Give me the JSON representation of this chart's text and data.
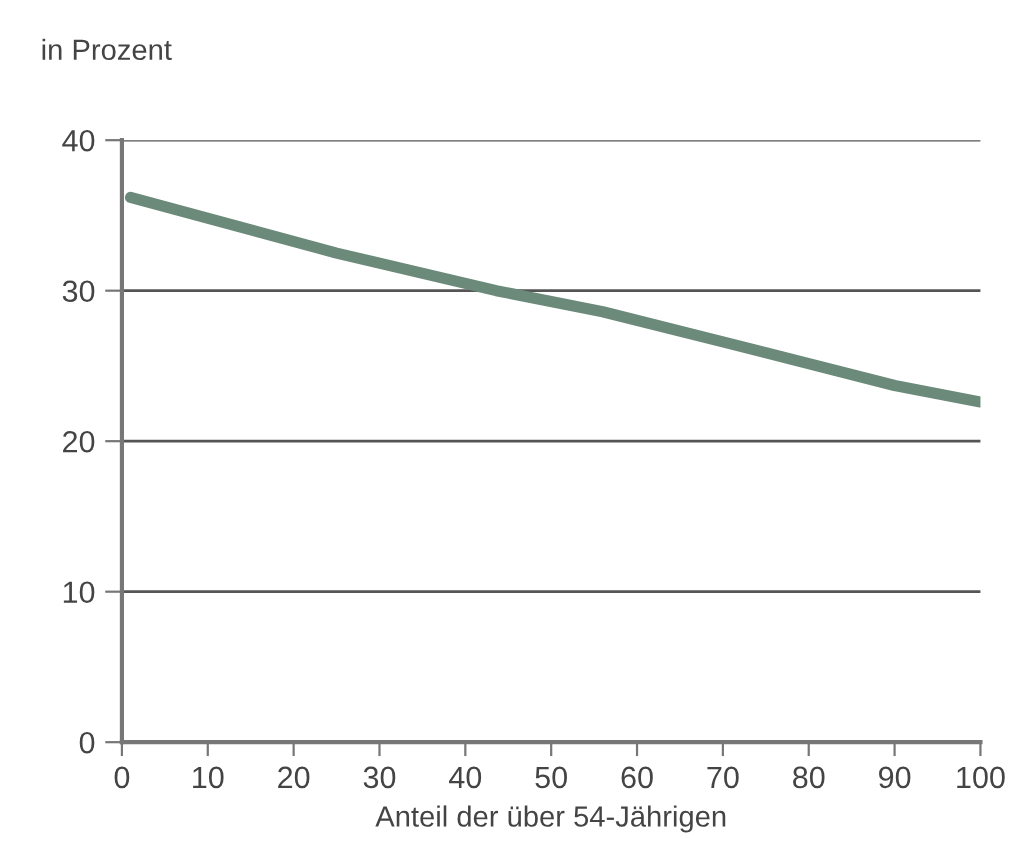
{
  "chart_data": {
    "type": "line",
    "ylabel": "in Prozent",
    "xlabel": "Anteil der über 54-Jährigen",
    "x": [
      1,
      25,
      43.6,
      56,
      70,
      90,
      100
    ],
    "series": [
      {
        "color": "#6b8a7a",
        "values": [
          36.2,
          32.5,
          30,
          28.6,
          26.6,
          23.7,
          22.6
        ]
      }
    ],
    "xlim": [
      0,
      100
    ],
    "xticks": [
      0,
      10,
      20,
      30,
      40,
      50,
      60,
      70,
      80,
      90,
      100
    ],
    "ylim": [
      0,
      40
    ],
    "yticks": [
      0,
      10,
      20,
      30,
      40
    ],
    "grid": "y",
    "legend": false,
    "marker": "none",
    "line_style": "solid"
  }
}
